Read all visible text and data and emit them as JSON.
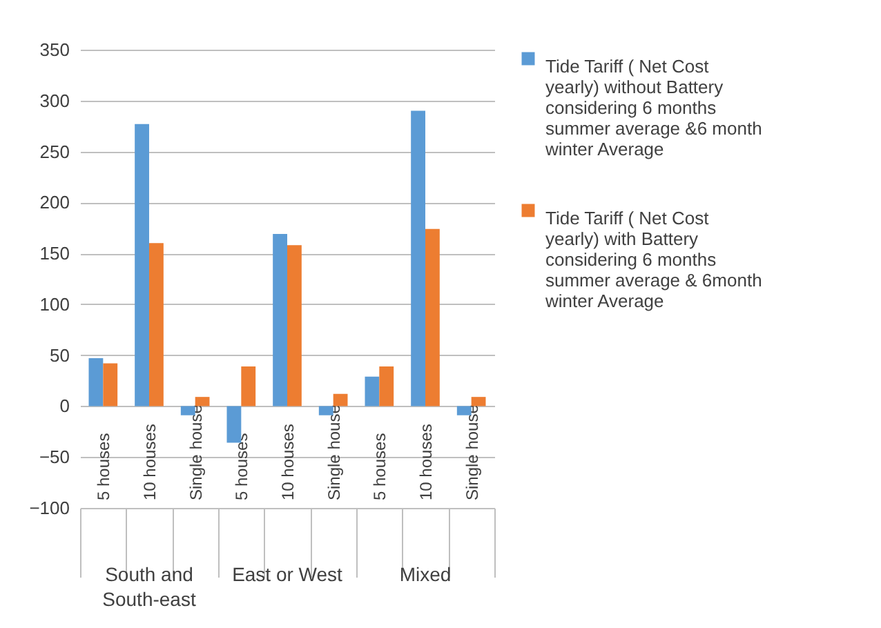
{
  "chart_data": {
    "type": "bar",
    "categories": [
      "5 houses",
      "10 houses",
      "Single house",
      "5 houses",
      "10 houses",
      "Single house",
      "5 houses",
      "10 houses",
      "Single house"
    ],
    "series": [
      {
        "name": "Tide Tariff ( Net Cost yearly) without Battery considering 6 months summer average &6 month winter Average",
        "color": "#5b9bd5",
        "values": [
          47,
          277,
          -9,
          -36,
          169,
          -9,
          29,
          290,
          -9
        ]
      },
      {
        "name": "Tide Tariff ( Net Cost yearly) with Battery considering 6 months summer average & 6month winter Average",
        "color": "#ed7d31",
        "values": [
          42,
          160,
          9,
          39,
          158,
          12,
          39,
          174,
          9
        ]
      }
    ],
    "annotations": [
      "South and South-east",
      "East or West",
      "Mixed"
    ],
    "ylim": [
      -100,
      350
    ],
    "yticks": [
      -100,
      -50,
      0,
      50,
      100,
      150,
      200,
      250,
      300,
      350
    ],
    "grid": "y",
    "legend": "right"
  }
}
